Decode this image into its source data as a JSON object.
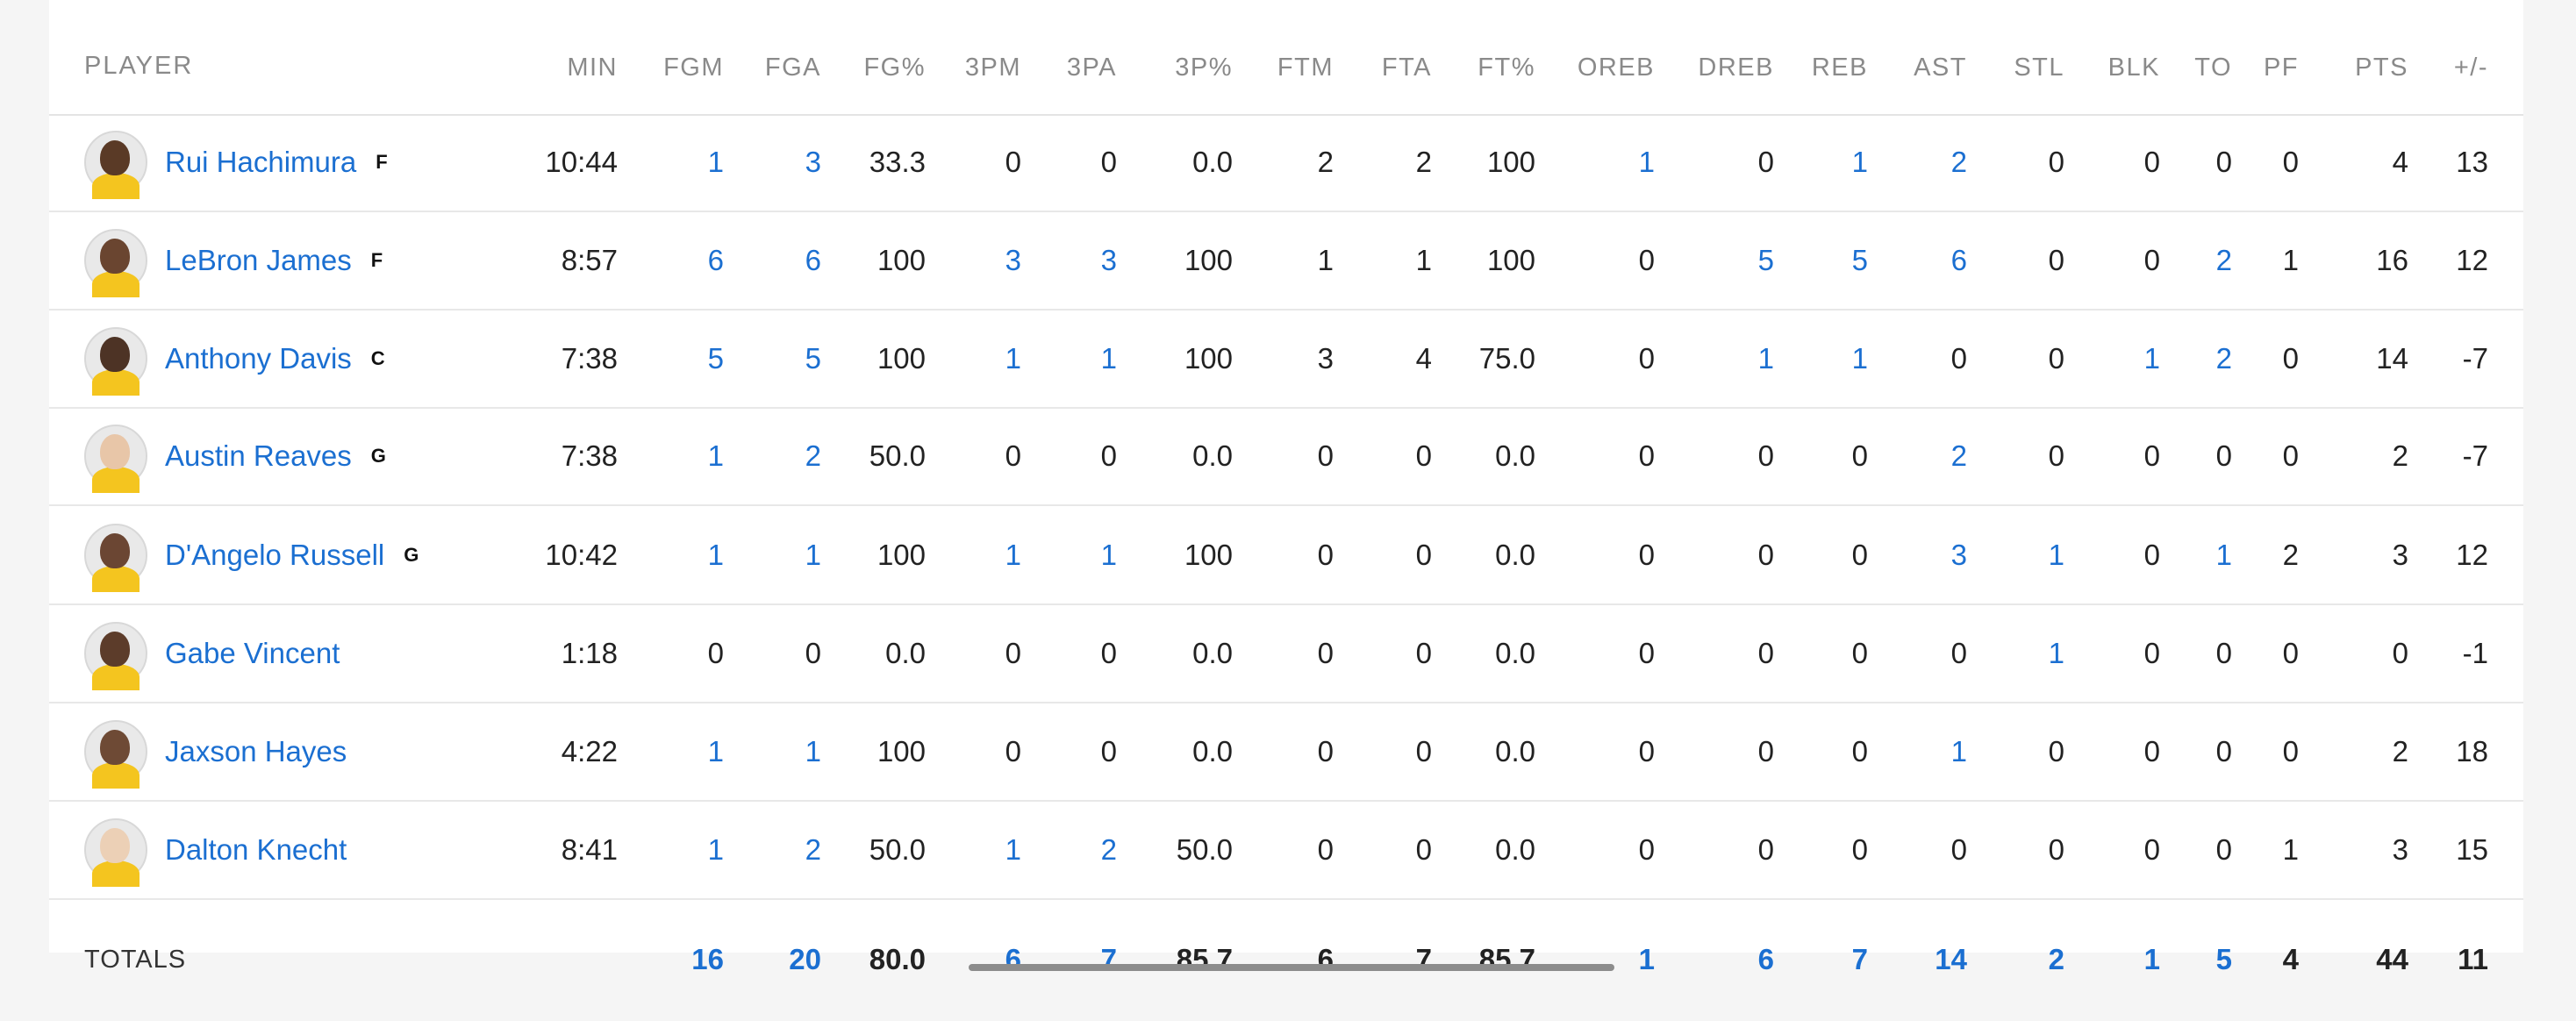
{
  "columns": [
    "PLAYER",
    "MIN",
    "FGM",
    "FGA",
    "FG%",
    "3PM",
    "3PA",
    "3P%",
    "FTM",
    "FTA",
    "FT%",
    "OREB",
    "DREB",
    "REB",
    "AST",
    "STL",
    "BLK",
    "TO",
    "PF",
    "PTS",
    "+/-"
  ],
  "colors": {
    "link": "#1b6fd1",
    "jersey": "#f4c51f"
  },
  "players": [
    {
      "name": "Rui Hachimura",
      "pos": "F",
      "skin": "#5a3a26",
      "stats": [
        "10:44",
        "1",
        "3",
        "33.3",
        "0",
        "0",
        "0.0",
        "2",
        "2",
        "100",
        "1",
        "0",
        "1",
        "2",
        "0",
        "0",
        "0",
        "0",
        "4",
        "13"
      ]
    },
    {
      "name": "LeBron James",
      "pos": "F",
      "skin": "#6a4530",
      "stats": [
        "8:57",
        "6",
        "6",
        "100",
        "3",
        "3",
        "100",
        "1",
        "1",
        "100",
        "0",
        "5",
        "5",
        "6",
        "0",
        "0",
        "2",
        "1",
        "16",
        "12"
      ]
    },
    {
      "name": "Anthony Davis",
      "pos": "C",
      "skin": "#4d3325",
      "stats": [
        "7:38",
        "5",
        "5",
        "100",
        "1",
        "1",
        "100",
        "3",
        "4",
        "75.0",
        "0",
        "1",
        "1",
        "0",
        "0",
        "1",
        "2",
        "0",
        "14",
        "-7"
      ]
    },
    {
      "name": "Austin Reaves",
      "pos": "G",
      "skin": "#e8c6a8",
      "stats": [
        "7:38",
        "1",
        "2",
        "50.0",
        "0",
        "0",
        "0.0",
        "0",
        "0",
        "0.0",
        "0",
        "0",
        "0",
        "2",
        "0",
        "0",
        "0",
        "0",
        "2",
        "-7"
      ]
    },
    {
      "name": "D'Angelo Russell",
      "pos": "G",
      "skin": "#6b4633",
      "stats": [
        "10:42",
        "1",
        "1",
        "100",
        "1",
        "1",
        "100",
        "0",
        "0",
        "0.0",
        "0",
        "0",
        "0",
        "3",
        "1",
        "0",
        "1",
        "2",
        "3",
        "12"
      ]
    },
    {
      "name": "Gabe Vincent",
      "pos": "",
      "skin": "#5c3c2a",
      "stats": [
        "1:18",
        "0",
        "0",
        "0.0",
        "0",
        "0",
        "0.0",
        "0",
        "0",
        "0.0",
        "0",
        "0",
        "0",
        "0",
        "1",
        "0",
        "0",
        "0",
        "0",
        "-1"
      ]
    },
    {
      "name": "Jaxson Hayes",
      "pos": "",
      "skin": "#6e4a35",
      "stats": [
        "4:22",
        "1",
        "1",
        "100",
        "0",
        "0",
        "0.0",
        "0",
        "0",
        "0.0",
        "0",
        "0",
        "0",
        "1",
        "0",
        "0",
        "0",
        "0",
        "2",
        "18"
      ]
    },
    {
      "name": "Dalton Knecht",
      "pos": "",
      "skin": "#ecd0b6",
      "stats": [
        "8:41",
        "1",
        "2",
        "50.0",
        "1",
        "2",
        "50.0",
        "0",
        "0",
        "0.0",
        "0",
        "0",
        "0",
        "0",
        "0",
        "0",
        "0",
        "1",
        "3",
        "15"
      ]
    }
  ],
  "linked_stats": [
    "FGM",
    "FGA",
    "3PM",
    "3PA",
    "OREB",
    "DREB",
    "REB",
    "AST",
    "STL",
    "BLK",
    "TO"
  ],
  "totals": {
    "label": "TOTALS",
    "stats": [
      "",
      "16",
      "20",
      "80.0",
      "6",
      "7",
      "85.7",
      "6",
      "7",
      "85.7",
      "1",
      "6",
      "7",
      "14",
      "2",
      "1",
      "5",
      "4",
      "44",
      "11"
    ]
  }
}
